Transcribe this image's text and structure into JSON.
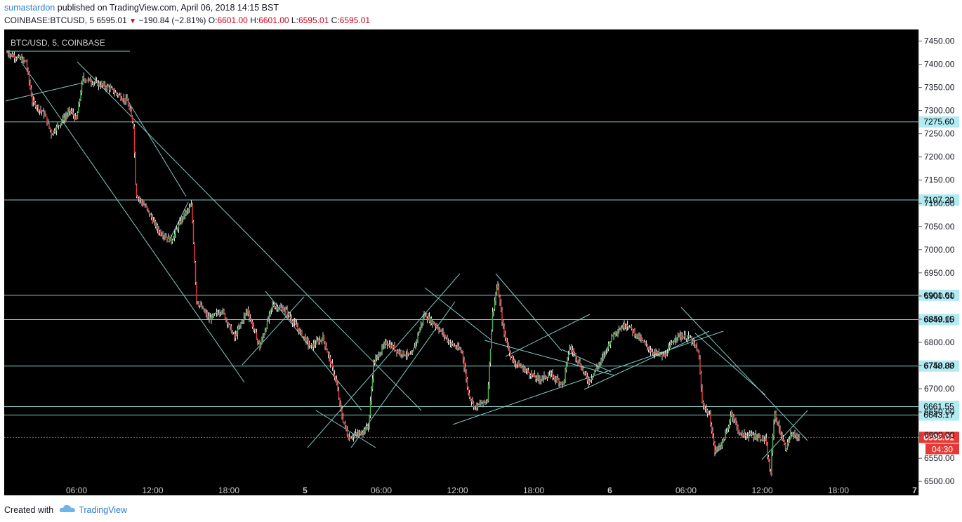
{
  "header": {
    "author": "sumastardon",
    "published_text": " published on TradingView.com, April 06, 2018 14:15 BST"
  },
  "ohlc": {
    "symbol": "COINBASE:BTCUSD, 5",
    "last": "6595.01",
    "change": "−190.84 (−2.81%)",
    "o_label": "O:",
    "o": "6601.00",
    "h_label": "H:",
    "h": "6601.00",
    "l_label": "L:",
    "l": "6595.01",
    "c_label": "C:",
    "c": "6595.01"
  },
  "legend_label": "BTC/USD, 5, COINBASE",
  "countdown": "04:30",
  "footer": {
    "created_with": "Created with",
    "brand": "TradingView"
  },
  "colors": {
    "background": "#000000",
    "up": "#4caf50",
    "down": "#e53935",
    "line": "#80cbc4",
    "level": "#80cbc4",
    "current": "#e53935"
  },
  "chart_data": {
    "type": "candlestick",
    "ylim": [
      6470,
      7475
    ],
    "x_ticks": [
      "06:00",
      "12:00",
      "18:00",
      "5",
      "06:00",
      "12:00",
      "18:00",
      "6",
      "06:00",
      "12:00",
      "18:00",
      "7"
    ],
    "y_ticks": [
      6500,
      6550,
      6600,
      6650,
      6700,
      6750,
      6800,
      6850,
      6900,
      6950,
      7000,
      7050,
      7100,
      7150,
      7200,
      7250,
      7300,
      7350,
      7400,
      7450
    ],
    "y_tick_labels": [
      "6500.00",
      "6550.00",
      "6600.00",
      "6650.00",
      "6700.00",
      "6750.00",
      "6800.00",
      "6850.00",
      "6900.00",
      "6950.00",
      "7000.00",
      "7050.00",
      "7100.00",
      "7150.00",
      "7200.00",
      "7250.00",
      "7300.00",
      "7350.00",
      "7400.00",
      "7450.00"
    ],
    "horizontal_levels": [
      {
        "value": 7275.6,
        "label": "7275.60"
      },
      {
        "value": 7107.2,
        "label": "7107.20"
      },
      {
        "value": 6901.61,
        "label": "6901.61"
      },
      {
        "value": 6849.15,
        "label": "6849.15"
      },
      {
        "value": 6748.88,
        "label": "6748.88"
      },
      {
        "value": 6661.55,
        "label": "6661.55"
      },
      {
        "value": 6643.17,
        "label": "6643.17"
      }
    ],
    "current_price": {
      "value": 6595.01,
      "label": "6595.01"
    },
    "price_path": [
      [
        0,
        7425
      ],
      [
        1.5,
        7405
      ],
      [
        2,
        7320
      ],
      [
        3,
        7290
      ],
      [
        3.5,
        7250
      ],
      [
        5,
        7300
      ],
      [
        5.5,
        7280
      ],
      [
        6,
        7370
      ],
      [
        8,
        7350
      ],
      [
        9.5,
        7320
      ],
      [
        10,
        7270
      ],
      [
        10.2,
        7120
      ],
      [
        11,
        7090
      ],
      [
        12,
        7040
      ],
      [
        13,
        7020
      ],
      [
        14,
        7075
      ],
      [
        14.6,
        7095
      ],
      [
        15,
        6890
      ],
      [
        16,
        6850
      ],
      [
        17,
        6870
      ],
      [
        18,
        6810
      ],
      [
        19,
        6870
      ],
      [
        20,
        6790
      ],
      [
        21,
        6880
      ],
      [
        22,
        6870
      ],
      [
        23,
        6830
      ],
      [
        24,
        6790
      ],
      [
        25,
        6810
      ],
      [
        26,
        6720
      ],
      [
        26.5,
        6640
      ],
      [
        27,
        6595
      ],
      [
        28,
        6605
      ],
      [
        28.6,
        6620
      ],
      [
        29,
        6755
      ],
      [
        30,
        6800
      ],
      [
        31,
        6780
      ],
      [
        32,
        6770
      ],
      [
        33,
        6860
      ],
      [
        34,
        6835
      ],
      [
        35,
        6800
      ],
      [
        36,
        6780
      ],
      [
        36.5,
        6690
      ],
      [
        37,
        6660
      ],
      [
        38,
        6675
      ],
      [
        38.4,
        6860
      ],
      [
        38.8,
        6925
      ],
      [
        39.3,
        6820
      ],
      [
        40,
        6760
      ],
      [
        41,
        6740
      ],
      [
        42,
        6720
      ],
      [
        43,
        6730
      ],
      [
        44,
        6710
      ],
      [
        44.5,
        6790
      ],
      [
        45,
        6770
      ],
      [
        46,
        6715
      ],
      [
        47,
        6760
      ],
      [
        48,
        6820
      ],
      [
        49,
        6840
      ],
      [
        50,
        6810
      ],
      [
        51,
        6780
      ],
      [
        52,
        6770
      ],
      [
        53,
        6815
      ],
      [
        54,
        6810
      ],
      [
        54.7,
        6780
      ],
      [
        55,
        6670
      ],
      [
        55.6,
        6640
      ],
      [
        56,
        6565
      ],
      [
        56.5,
        6580
      ],
      [
        57,
        6610
      ],
      [
        57.3,
        6650
      ],
      [
        58,
        6600
      ],
      [
        59,
        6600
      ],
      [
        60,
        6590
      ],
      [
        60.4,
        6510
      ],
      [
        60.7,
        6650
      ],
      [
        61,
        6620
      ],
      [
        61.6,
        6570
      ],
      [
        62,
        6600
      ],
      [
        62.7,
        6595
      ]
    ]
  }
}
